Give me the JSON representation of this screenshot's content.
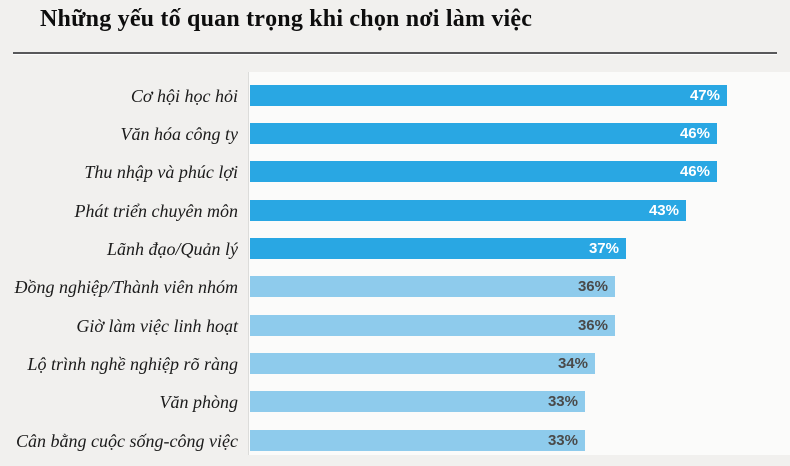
{
  "page": {
    "title": "Những yếu tố quan trọng khi chọn nơi làm việc"
  },
  "chart_data": {
    "type": "bar",
    "orientation": "horizontal",
    "title": "Những yếu tố quan trọng khi chọn nơi làm việc",
    "categories": [
      "Cơ hội học hỏi",
      "Văn hóa công ty",
      "Thu nhập và phúc lợi",
      "Phát triển chuyên môn",
      "Lãnh đạo/Quản lý",
      "Đồng nghiệp/Thành viên nhóm",
      "Giờ làm việc linh hoạt",
      "Lộ trình nghề nghiệp rõ ràng",
      "Văn phòng",
      "Cân bằng cuộc sống-công việc"
    ],
    "values": [
      47,
      46,
      46,
      43,
      37,
      36,
      36,
      34,
      33,
      33
    ],
    "value_labels": [
      "47%",
      "46%",
      "46%",
      "43%",
      "37%",
      "36%",
      "36%",
      "34%",
      "33%",
      "33%"
    ],
    "emphasis": [
      true,
      true,
      true,
      true,
      true,
      false,
      false,
      false,
      false,
      false
    ],
    "xlim": [
      0,
      50
    ],
    "grid": false,
    "legend": false,
    "value_label_position": "inside-end",
    "colors": {
      "bar_emphasis": "#29a7e3",
      "bar_regular": "#8ecbec",
      "value_label_on_emphasis": "#ffffff",
      "value_label_on_regular": "#4a4a4a",
      "title_text": "#0d0d0d",
      "category_text": "#1b1b1b",
      "divider": "#58585a"
    }
  }
}
